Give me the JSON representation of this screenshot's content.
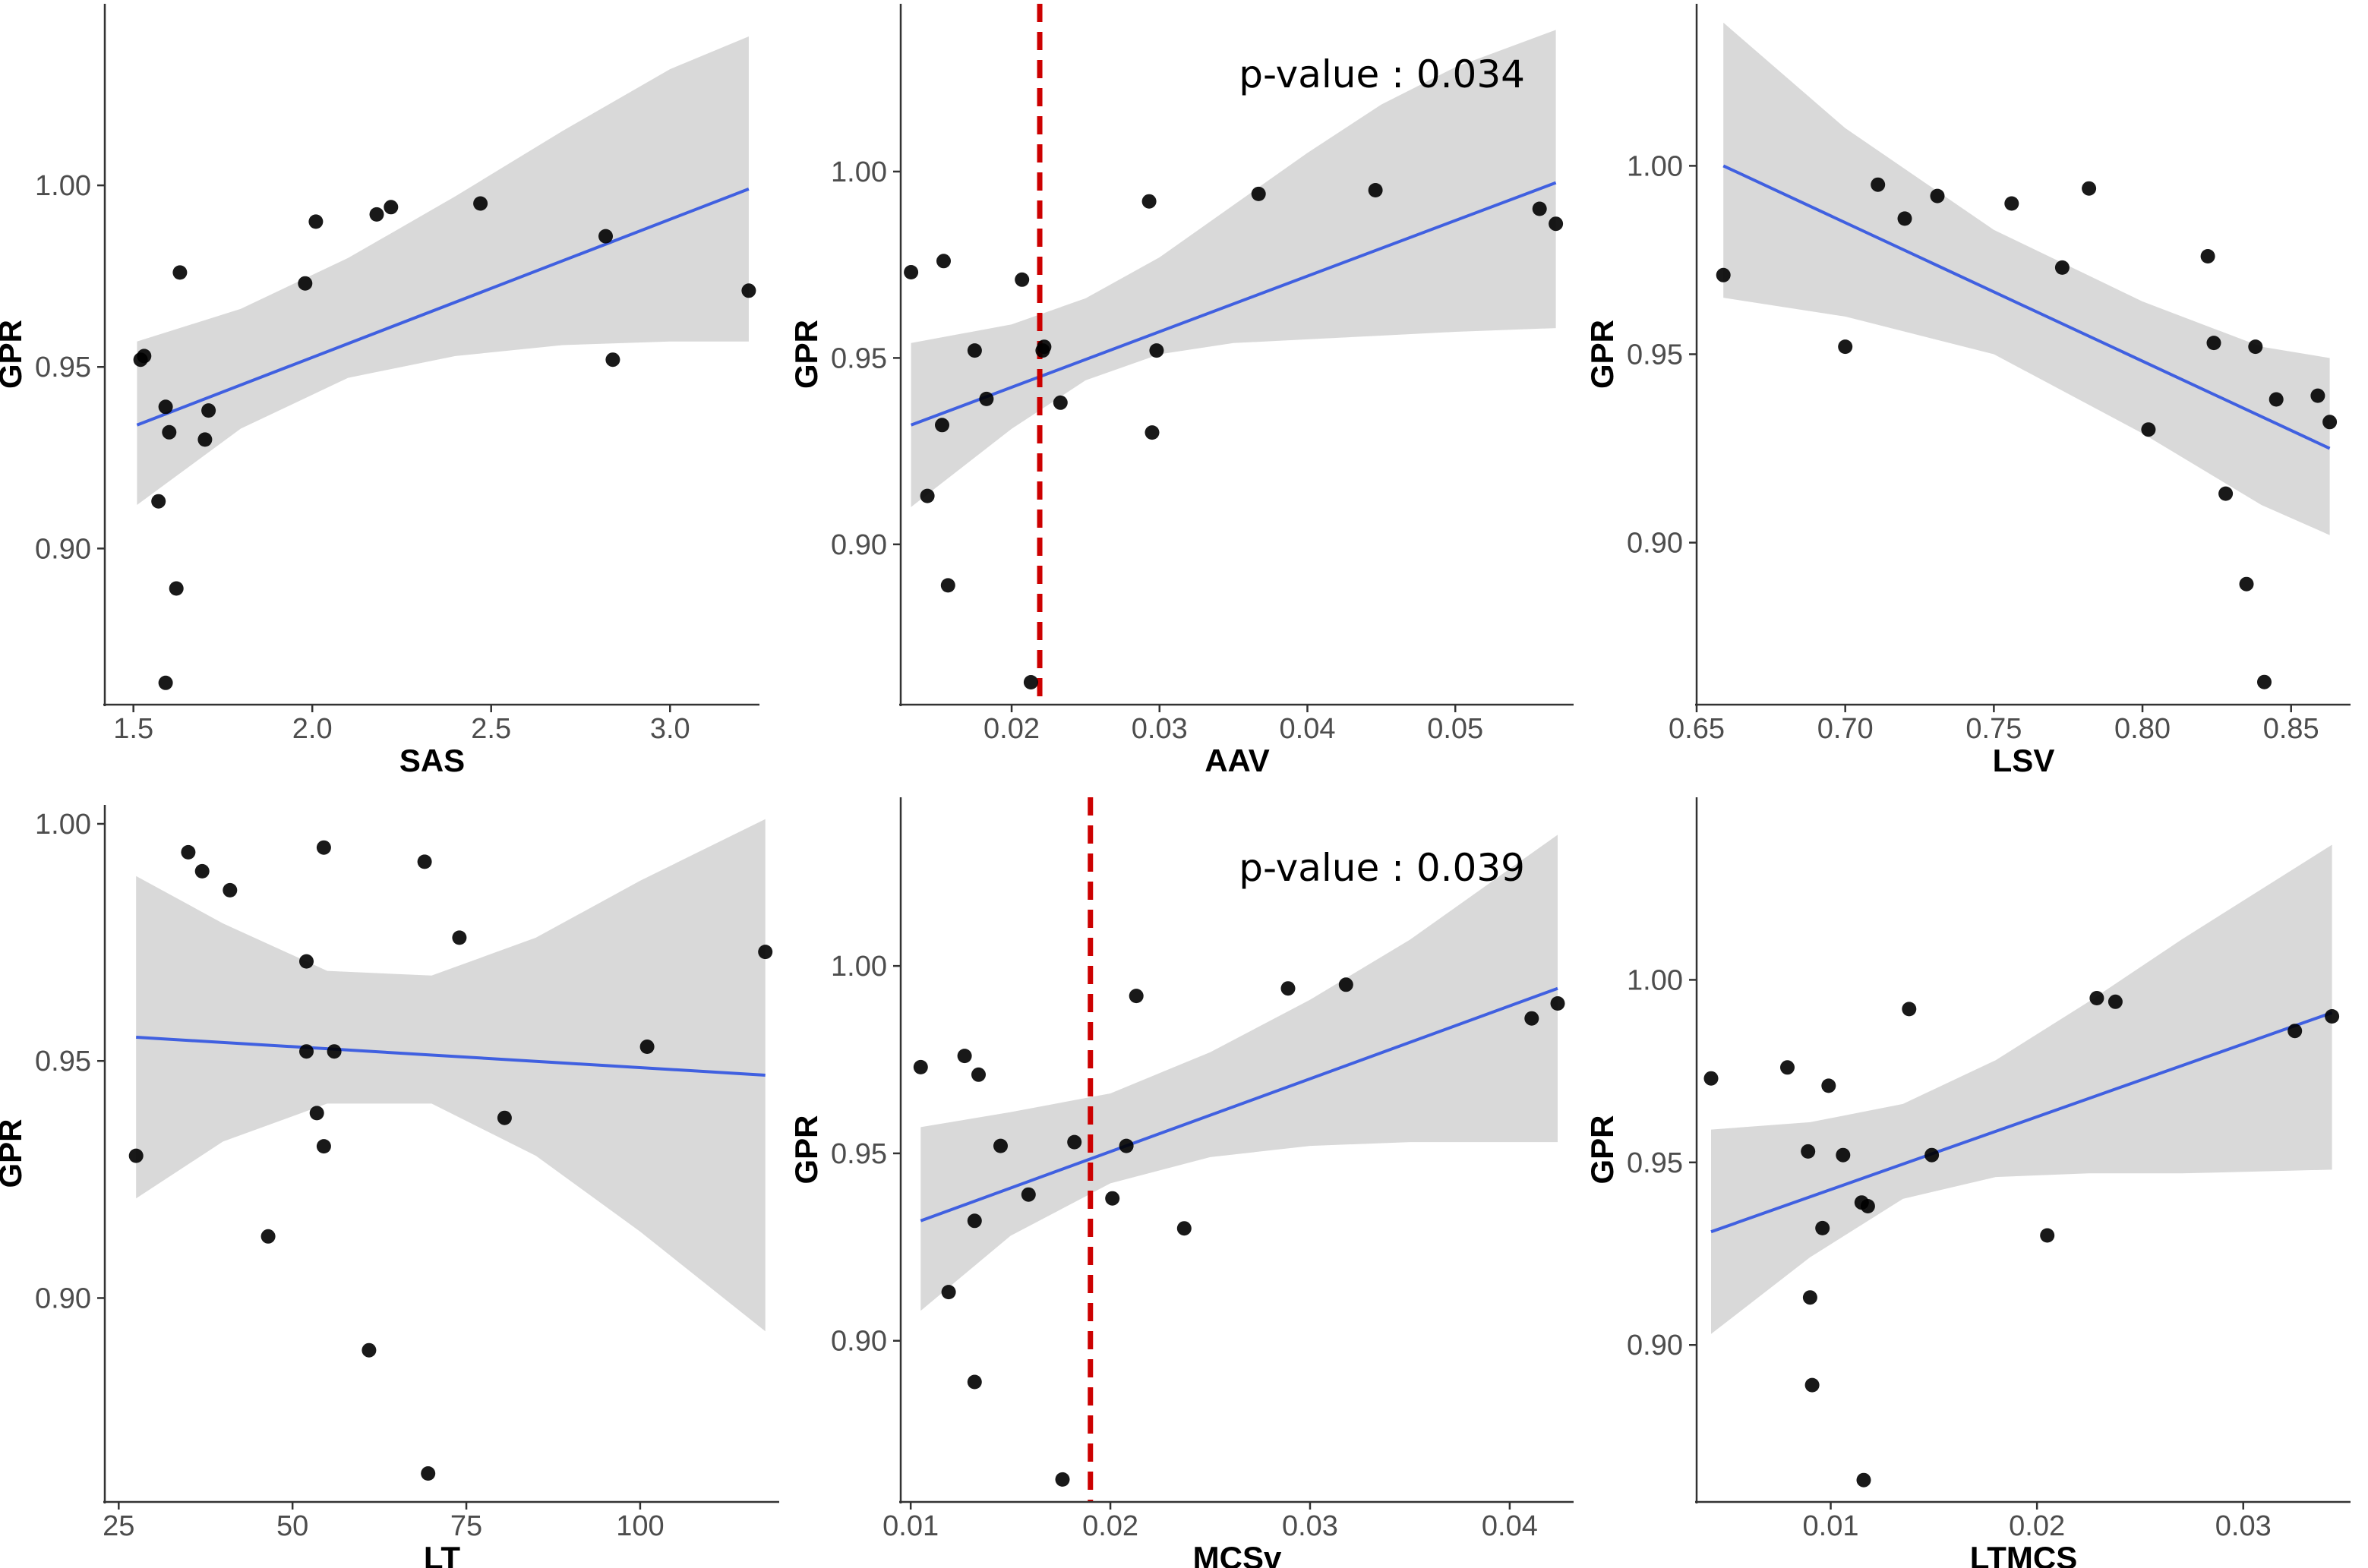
{
  "figure_title": "GPR scatter plots with linear fits",
  "colors": {
    "points": "#000000",
    "fit": "#4060e0",
    "band": "#d9d9d9",
    "threshold": "#cc0000",
    "axis": "#333333"
  },
  "chart_data": [
    {
      "type": "scatter",
      "title": "",
      "xlabel": "SAS",
      "ylabel": "GPR",
      "xlim": [
        1.42,
        3.25
      ],
      "ylim": [
        0.857,
        1.05
      ],
      "xticks": [
        1.5,
        2.0,
        2.5,
        3.0
      ],
      "xtick_labels": [
        "1.5",
        "2.0",
        "2.5",
        "3.0"
      ],
      "yticks": [
        0.9,
        0.95,
        1.0
      ],
      "ytick_labels": [
        "0.90",
        "0.95",
        "1.00"
      ],
      "points": [
        [
          1.52,
          0.952
        ],
        [
          1.53,
          0.953
        ],
        [
          1.57,
          0.913
        ],
        [
          1.59,
          0.939
        ],
        [
          1.59,
          0.863
        ],
        [
          1.6,
          0.932
        ],
        [
          1.62,
          0.889
        ],
        [
          1.63,
          0.976
        ],
        [
          1.7,
          0.93
        ],
        [
          1.71,
          0.938
        ],
        [
          1.98,
          0.973
        ],
        [
          2.01,
          0.99
        ],
        [
          2.18,
          0.992
        ],
        [
          2.22,
          0.994
        ],
        [
          2.47,
          0.995
        ],
        [
          2.82,
          0.986
        ],
        [
          2.84,
          0.952
        ],
        [
          3.22,
          0.971
        ]
      ],
      "fit": {
        "x": [
          1.51,
          3.22
        ],
        "y": [
          0.934,
          0.999
        ]
      },
      "band": [
        [
          1.51,
          0.912,
          0.957
        ],
        [
          1.8,
          0.933,
          0.966
        ],
        [
          2.1,
          0.947,
          0.98
        ],
        [
          2.4,
          0.953,
          0.997
        ],
        [
          2.7,
          0.956,
          1.015
        ],
        [
          3.0,
          0.957,
          1.032
        ],
        [
          3.22,
          0.957,
          1.041
        ]
      ],
      "threshold_x": null,
      "annotation": ""
    },
    {
      "type": "scatter",
      "title": "",
      "xlabel": "AAV",
      "ylabel": "GPR",
      "xlim": [
        0.0125,
        0.058
      ],
      "ylim": [
        0.857,
        1.045
      ],
      "xticks": [
        0.02,
        0.03,
        0.04,
        0.05
      ],
      "xtick_labels": [
        "0.02",
        "0.03",
        "0.04",
        "0.05"
      ],
      "yticks": [
        0.9,
        0.95,
        1.0
      ],
      "ytick_labels": [
        "0.90",
        "0.95",
        "1.00"
      ],
      "points": [
        [
          0.0132,
          0.973
        ],
        [
          0.0143,
          0.913
        ],
        [
          0.0153,
          0.932
        ],
        [
          0.0154,
          0.976
        ],
        [
          0.0157,
          0.889
        ],
        [
          0.0175,
          0.952
        ],
        [
          0.0183,
          0.939
        ],
        [
          0.0207,
          0.971
        ],
        [
          0.0213,
          0.863
        ],
        [
          0.0221,
          0.952
        ],
        [
          0.0222,
          0.953
        ],
        [
          0.0233,
          0.938
        ],
        [
          0.0293,
          0.992
        ],
        [
          0.0295,
          0.93
        ],
        [
          0.0298,
          0.952
        ],
        [
          0.0367,
          0.994
        ],
        [
          0.0446,
          0.995
        ],
        [
          0.0557,
          0.99
        ],
        [
          0.0568,
          0.986
        ]
      ],
      "fit": {
        "x": [
          0.0132,
          0.0568
        ],
        "y": [
          0.932,
          0.997
        ]
      },
      "band": [
        [
          0.0132,
          0.91,
          0.954
        ],
        [
          0.02,
          0.931,
          0.959
        ],
        [
          0.025,
          0.944,
          0.966
        ],
        [
          0.03,
          0.951,
          0.977
        ],
        [
          0.035,
          0.954,
          0.991
        ],
        [
          0.04,
          0.955,
          1.005
        ],
        [
          0.045,
          0.956,
          1.018
        ],
        [
          0.05,
          0.957,
          1.028
        ],
        [
          0.0568,
          0.958,
          1.038
        ]
      ],
      "threshold_x": 0.0219,
      "annotation": "p-value : 0.034"
    },
    {
      "type": "scatter",
      "title": "",
      "xlabel": "LSV",
      "ylabel": "GPR",
      "xlim": [
        0.65,
        0.87
      ],
      "ylim": [
        0.857,
        1.043
      ],
      "xticks": [
        0.65,
        0.7,
        0.75,
        0.8,
        0.85
      ],
      "xtick_labels": [
        "0.65",
        "0.70",
        "0.75",
        "0.80",
        "0.85"
      ],
      "yticks": [
        0.9,
        0.95,
        1.0
      ],
      "ytick_labels": [
        "0.90",
        "0.95",
        "1.00"
      ],
      "points": [
        [
          0.659,
          0.971
        ],
        [
          0.7,
          0.952
        ],
        [
          0.711,
          0.995
        ],
        [
          0.72,
          0.986
        ],
        [
          0.731,
          0.992
        ],
        [
          0.756,
          0.99
        ],
        [
          0.773,
          0.973
        ],
        [
          0.782,
          0.994
        ],
        [
          0.802,
          0.93
        ],
        [
          0.822,
          0.976
        ],
        [
          0.824,
          0.953
        ],
        [
          0.828,
          0.913
        ],
        [
          0.835,
          0.889
        ],
        [
          0.838,
          0.952
        ],
        [
          0.841,
          0.863
        ],
        [
          0.845,
          0.938
        ],
        [
          0.859,
          0.939
        ],
        [
          0.863,
          0.932
        ]
      ],
      "fit": {
        "x": [
          0.659,
          0.863
        ],
        "y": [
          1.0,
          0.925
        ]
      },
      "band": [
        [
          0.659,
          0.965,
          1.038
        ],
        [
          0.7,
          0.96,
          1.01
        ],
        [
          0.75,
          0.95,
          0.983
        ],
        [
          0.8,
          0.929,
          0.964
        ],
        [
          0.84,
          0.91,
          0.952
        ],
        [
          0.863,
          0.902,
          0.949
        ]
      ],
      "threshold_x": null,
      "annotation": ""
    },
    {
      "type": "scatter",
      "title": "",
      "xlabel": "LT",
      "ylabel": "GPR",
      "xlim": [
        23,
        120
      ],
      "ylim": [
        0.857,
        1.004
      ],
      "xticks": [
        25,
        50,
        75,
        100
      ],
      "xtick_labels": [
        "25",
        "50",
        "75",
        "100"
      ],
      "yticks": [
        0.9,
        0.95,
        1.0
      ],
      "ytick_labels": [
        "0.90",
        "0.95",
        "1.00"
      ],
      "points": [
        [
          27.5,
          0.93
        ],
        [
          35,
          0.994
        ],
        [
          37,
          0.99
        ],
        [
          41,
          0.986
        ],
        [
          46.5,
          0.913
        ],
        [
          52,
          0.971
        ],
        [
          52,
          0.952
        ],
        [
          53.5,
          0.939
        ],
        [
          54.5,
          0.932
        ],
        [
          54.5,
          0.995
        ],
        [
          56,
          0.952
        ],
        [
          61,
          0.889
        ],
        [
          69,
          0.992
        ],
        [
          69.5,
          0.863
        ],
        [
          74,
          0.976
        ],
        [
          80.5,
          0.938
        ],
        [
          101,
          0.953
        ],
        [
          118,
          0.973
        ]
      ],
      "fit": {
        "x": [
          27.5,
          118
        ],
        "y": [
          0.955,
          0.947
        ]
      },
      "band": [
        [
          27.5,
          0.921,
          0.989
        ],
        [
          40,
          0.933,
          0.979
        ],
        [
          55,
          0.941,
          0.969
        ],
        [
          70,
          0.941,
          0.968
        ],
        [
          85,
          0.93,
          0.976
        ],
        [
          100,
          0.914,
          0.988
        ],
        [
          118,
          0.893,
          1.001
        ]
      ],
      "threshold_x": null,
      "annotation": ""
    },
    {
      "type": "scatter",
      "title": "",
      "xlabel": "MCSv",
      "ylabel": "GPR",
      "xlim": [
        0.0095,
        0.0432
      ],
      "ylim": [
        0.857,
        1.045
      ],
      "xticks": [
        0.01,
        0.02,
        0.03,
        0.04
      ],
      "xtick_labels": [
        "0.01",
        "0.02",
        "0.03",
        "0.04"
      ],
      "yticks": [
        0.9,
        0.95,
        1.0
      ],
      "ytick_labels": [
        "0.90",
        "0.95",
        "1.00"
      ],
      "points": [
        [
          0.0105,
          0.973
        ],
        [
          0.0119,
          0.913
        ],
        [
          0.0127,
          0.976
        ],
        [
          0.0132,
          0.932
        ],
        [
          0.0132,
          0.889
        ],
        [
          0.0134,
          0.971
        ],
        [
          0.0145,
          0.952
        ],
        [
          0.0159,
          0.939
        ],
        [
          0.0176,
          0.863
        ],
        [
          0.0182,
          0.953
        ],
        [
          0.0201,
          0.938
        ],
        [
          0.0208,
          0.952
        ],
        [
          0.0213,
          0.992
        ],
        [
          0.0237,
          0.93
        ],
        [
          0.0289,
          0.994
        ],
        [
          0.0318,
          0.995
        ],
        [
          0.0411,
          0.986
        ],
        [
          0.0424,
          0.99
        ]
      ],
      "fit": {
        "x": [
          0.0105,
          0.0424
        ],
        "y": [
          0.932,
          0.994
        ]
      },
      "band": [
        [
          0.0105,
          0.908,
          0.957
        ],
        [
          0.015,
          0.928,
          0.961
        ],
        [
          0.02,
          0.942,
          0.966
        ],
        [
          0.025,
          0.949,
          0.977
        ],
        [
          0.03,
          0.952,
          0.991
        ],
        [
          0.035,
          0.953,
          1.007
        ],
        [
          0.0424,
          0.953,
          1.035
        ]
      ],
      "threshold_x": 0.019,
      "annotation": "p-value : 0.039"
    },
    {
      "type": "scatter",
      "title": "",
      "xlabel": "LTMCS",
      "ylabel": "GPR",
      "xlim": [
        0.0035,
        0.0352
      ],
      "ylim": [
        0.857,
        1.05
      ],
      "xticks": [
        0.01,
        0.02,
        0.03
      ],
      "xtick_labels": [
        "0.01",
        "0.02",
        "0.03"
      ],
      "yticks": [
        0.9,
        0.95,
        1.0
      ],
      "ytick_labels": [
        "0.90",
        "0.95",
        "1.00"
      ],
      "points": [
        [
          0.0042,
          0.973
        ],
        [
          0.0079,
          0.976
        ],
        [
          0.0089,
          0.953
        ],
        [
          0.009,
          0.913
        ],
        [
          0.0091,
          0.889
        ],
        [
          0.0096,
          0.932
        ],
        [
          0.0099,
          0.971
        ],
        [
          0.0106,
          0.952
        ],
        [
          0.0115,
          0.939
        ],
        [
          0.0116,
          0.863
        ],
        [
          0.0118,
          0.938
        ],
        [
          0.0138,
          0.992
        ],
        [
          0.0149,
          0.952
        ],
        [
          0.0205,
          0.93
        ],
        [
          0.0229,
          0.995
        ],
        [
          0.0238,
          0.994
        ],
        [
          0.0325,
          0.986
        ],
        [
          0.0343,
          0.99
        ]
      ],
      "fit": {
        "x": [
          0.0042,
          0.0343
        ],
        "y": [
          0.931,
          0.991
        ]
      },
      "band": [
        [
          0.0042,
          0.903,
          0.959
        ],
        [
          0.009,
          0.924,
          0.961
        ],
        [
          0.0135,
          0.94,
          0.966
        ],
        [
          0.018,
          0.946,
          0.978
        ],
        [
          0.0225,
          0.947,
          0.994
        ],
        [
          0.027,
          0.947,
          1.011
        ],
        [
          0.0343,
          0.948,
          1.037
        ]
      ],
      "threshold_x": null,
      "annotation": ""
    }
  ]
}
